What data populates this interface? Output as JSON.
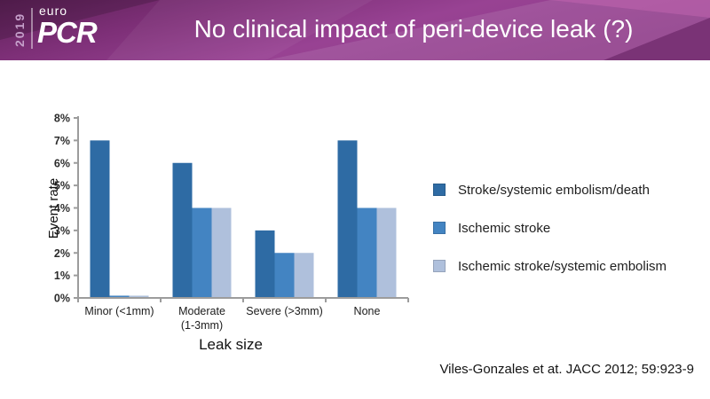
{
  "header": {
    "logo": {
      "year": "2019",
      "euro": "euro",
      "pcr": "PCR"
    },
    "title": "No clinical impact of peri-device leak (?)"
  },
  "chart_data": {
    "type": "bar",
    "title": "",
    "categories": [
      "Minor (<1mm)",
      "Moderate\n(1-3mm)",
      "Severe (>3mm)",
      "None"
    ],
    "series": [
      {
        "name": "Stroke/systemic embolism/death",
        "color": "#2E6BA4",
        "values": [
          7,
          6,
          3,
          7
        ]
      },
      {
        "name": "Ischemic stroke",
        "color": "#4384C2",
        "values": [
          0.1,
          4,
          2,
          4
        ]
      },
      {
        "name": "Ischemic stroke/systemic embolism",
        "color": "#AFC0DC",
        "values": [
          0.1,
          4,
          2,
          4
        ]
      }
    ],
    "xlabel": "Leak size",
    "ylabel": "Event rate",
    "ylim": [
      0,
      8
    ],
    "ytick_step": 1,
    "ytick_suffix": "%",
    "grid": false,
    "legend_position": "right",
    "axis_color": "#9C9C9C"
  },
  "citation": "Viles-Gonzales et at. JACC 2012; 59:923-9",
  "colors": {
    "header_purple_dark": "#5E2158",
    "header_purple_mid": "#7D2F77",
    "header_purple_bright": "#984293",
    "header_pink_facet": "#C868B4",
    "title_text": "#FFFFFF"
  }
}
